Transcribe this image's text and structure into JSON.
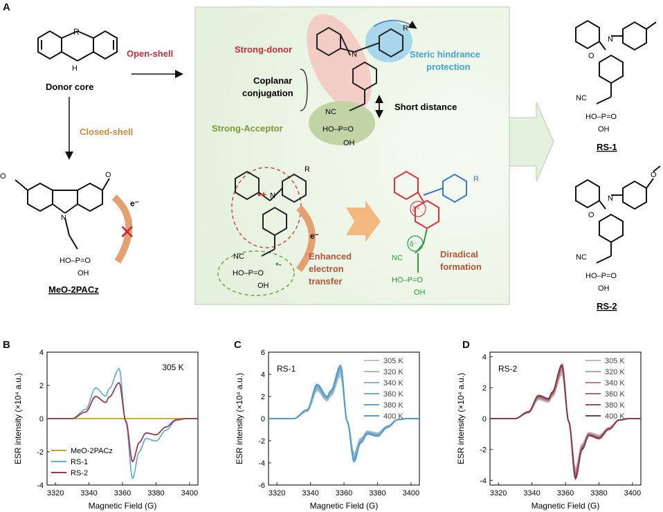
{
  "panel_a": {
    "letter": "A",
    "donor_core_label": "Donor core",
    "donor_core_atom_r": "R",
    "donor_core_atom_nh": "H",
    "open_shell": "Open-shell",
    "closed_shell": "Closed-shell",
    "meo_label": "MeO-2PACz",
    "strong_donor": "Strong-donor",
    "steric": [
      "Steric hindrance",
      "protection"
    ],
    "coplanar": [
      "Coplanar",
      "conjugation"
    ],
    "short_distance": "Short distance",
    "strong_acceptor": "Strong-Acceptor",
    "enhanced": [
      "Enhanced",
      "electron",
      "transfer"
    ],
    "diradical": [
      "Diradical",
      "formation"
    ],
    "rs1_label": "RS-1",
    "rs2_label": "RS-2",
    "electron": "e⁻",
    "nc": "NC",
    "po": "P=O",
    "ho": "HO",
    "oh": "OH",
    "delta_plus": "δ⁺",
    "delta_minus": "δ⁻",
    "colors": {
      "donor": "#c62d36",
      "steric": "#3fa3cf",
      "acceptor": "#7a9a3a",
      "closed": "#d08a3a",
      "diradical_red": "#e0303a",
      "diradical_green": "#2a9a3a"
    }
  },
  "chart_data": [
    {
      "panel": "B",
      "type": "line",
      "annotation": "305 K",
      "xlabel": "Magnetic Field (G)",
      "ylabel": "ESR intensity (×10⁴ a.u.)",
      "xlim": [
        3315,
        3405
      ],
      "ylim": [
        -4,
        4
      ],
      "xticks": [
        3320,
        3340,
        3360,
        3380,
        3400
      ],
      "yticks": [
        -4,
        -2,
        0,
        2,
        4
      ],
      "legend_position": "bottom-left",
      "series": [
        {
          "name": "MeO-2PACz",
          "color": "#c9a227",
          "kind": "flat",
          "scale": 0
        },
        {
          "name": "RS-1",
          "color": "#6aaed0",
          "kind": "esr",
          "scale": 1.0
        },
        {
          "name": "RS-2",
          "color": "#9a3a48",
          "kind": "esr",
          "scale": 0.72
        }
      ],
      "esr_profile": {
        "x": [
          3330,
          3338,
          3344,
          3350,
          3352,
          3358,
          3362,
          3366,
          3370,
          3374,
          3380,
          3386,
          3392,
          3398
        ],
        "y": [
          0,
          0.55,
          1.85,
          1.35,
          1.8,
          3.0,
          -0.2,
          -3.6,
          -2.0,
          -1.2,
          -1.35,
          -0.7,
          -0.1,
          0
        ]
      }
    },
    {
      "panel": "C",
      "type": "line",
      "annotation": "RS-1",
      "xlabel": "Magnetic Field (G)",
      "ylabel": "ESR intensity (×10⁴ a.u.)",
      "xlim": [
        3315,
        3405
      ],
      "ylim": [
        -6,
        6
      ],
      "xticks": [
        3320,
        3340,
        3360,
        3380,
        3400
      ],
      "yticks": [
        -6,
        -4,
        -2,
        0,
        2,
        4,
        6
      ],
      "legend_position": "top-right",
      "series": [
        {
          "name": "305 K",
          "color": "#b8c6cf",
          "scale": 0.8
        },
        {
          "name": "320 K",
          "color": "#a4bccb",
          "scale": 0.84
        },
        {
          "name": "340 K",
          "color": "#8fb2c7",
          "scale": 0.88
        },
        {
          "name": "360 K",
          "color": "#7aa9c6",
          "scale": 0.92
        },
        {
          "name": "380 K",
          "color": "#66a2c8",
          "scale": 0.96
        },
        {
          "name": "400 K",
          "color": "#4f9ccc",
          "scale": 1.0
        }
      ],
      "esr_profile": {
        "x": [
          3330,
          3338,
          3344,
          3350,
          3352,
          3358,
          3362,
          3366,
          3370,
          3374,
          3380,
          3386,
          3392,
          3398
        ],
        "y": [
          0,
          0.8,
          3.1,
          2.0,
          2.5,
          4.8,
          -0.3,
          -3.9,
          -2.2,
          -1.4,
          -1.6,
          -0.8,
          -0.1,
          0
        ]
      }
    },
    {
      "panel": "D",
      "type": "line",
      "annotation": "RS-2",
      "xlabel": "Magnetic Field (G)",
      "ylabel": "ESR intensity (×10⁴ a.u.)",
      "xlim": [
        3315,
        3405
      ],
      "ylim": [
        -4.3,
        4.3
      ],
      "xticks": [
        3320,
        3340,
        3360,
        3380,
        3400
      ],
      "yticks": [
        -4,
        -2,
        0,
        2,
        4
      ],
      "legend_position": "top-right",
      "series": [
        {
          "name": "305 K",
          "color": "#cfb4b8",
          "scale": 0.82
        },
        {
          "name": "320 K",
          "color": "#c29ea3",
          "scale": 0.86
        },
        {
          "name": "340 K",
          "color": "#b4858c",
          "scale": 0.9
        },
        {
          "name": "360 K",
          "color": "#a46a73",
          "scale": 0.94
        },
        {
          "name": "380 K",
          "color": "#94505b",
          "scale": 0.97
        },
        {
          "name": "400 K",
          "color": "#853845",
          "scale": 1.0
        }
      ],
      "esr_profile": {
        "x": [
          3330,
          3338,
          3344,
          3350,
          3352,
          3358,
          3362,
          3366,
          3370,
          3374,
          3380,
          3386,
          3392,
          3398
        ],
        "y": [
          0,
          0.45,
          1.5,
          1.3,
          1.7,
          3.5,
          -0.2,
          -3.9,
          -2.0,
          -1.1,
          -1.3,
          -0.7,
          -0.1,
          0
        ]
      }
    }
  ]
}
